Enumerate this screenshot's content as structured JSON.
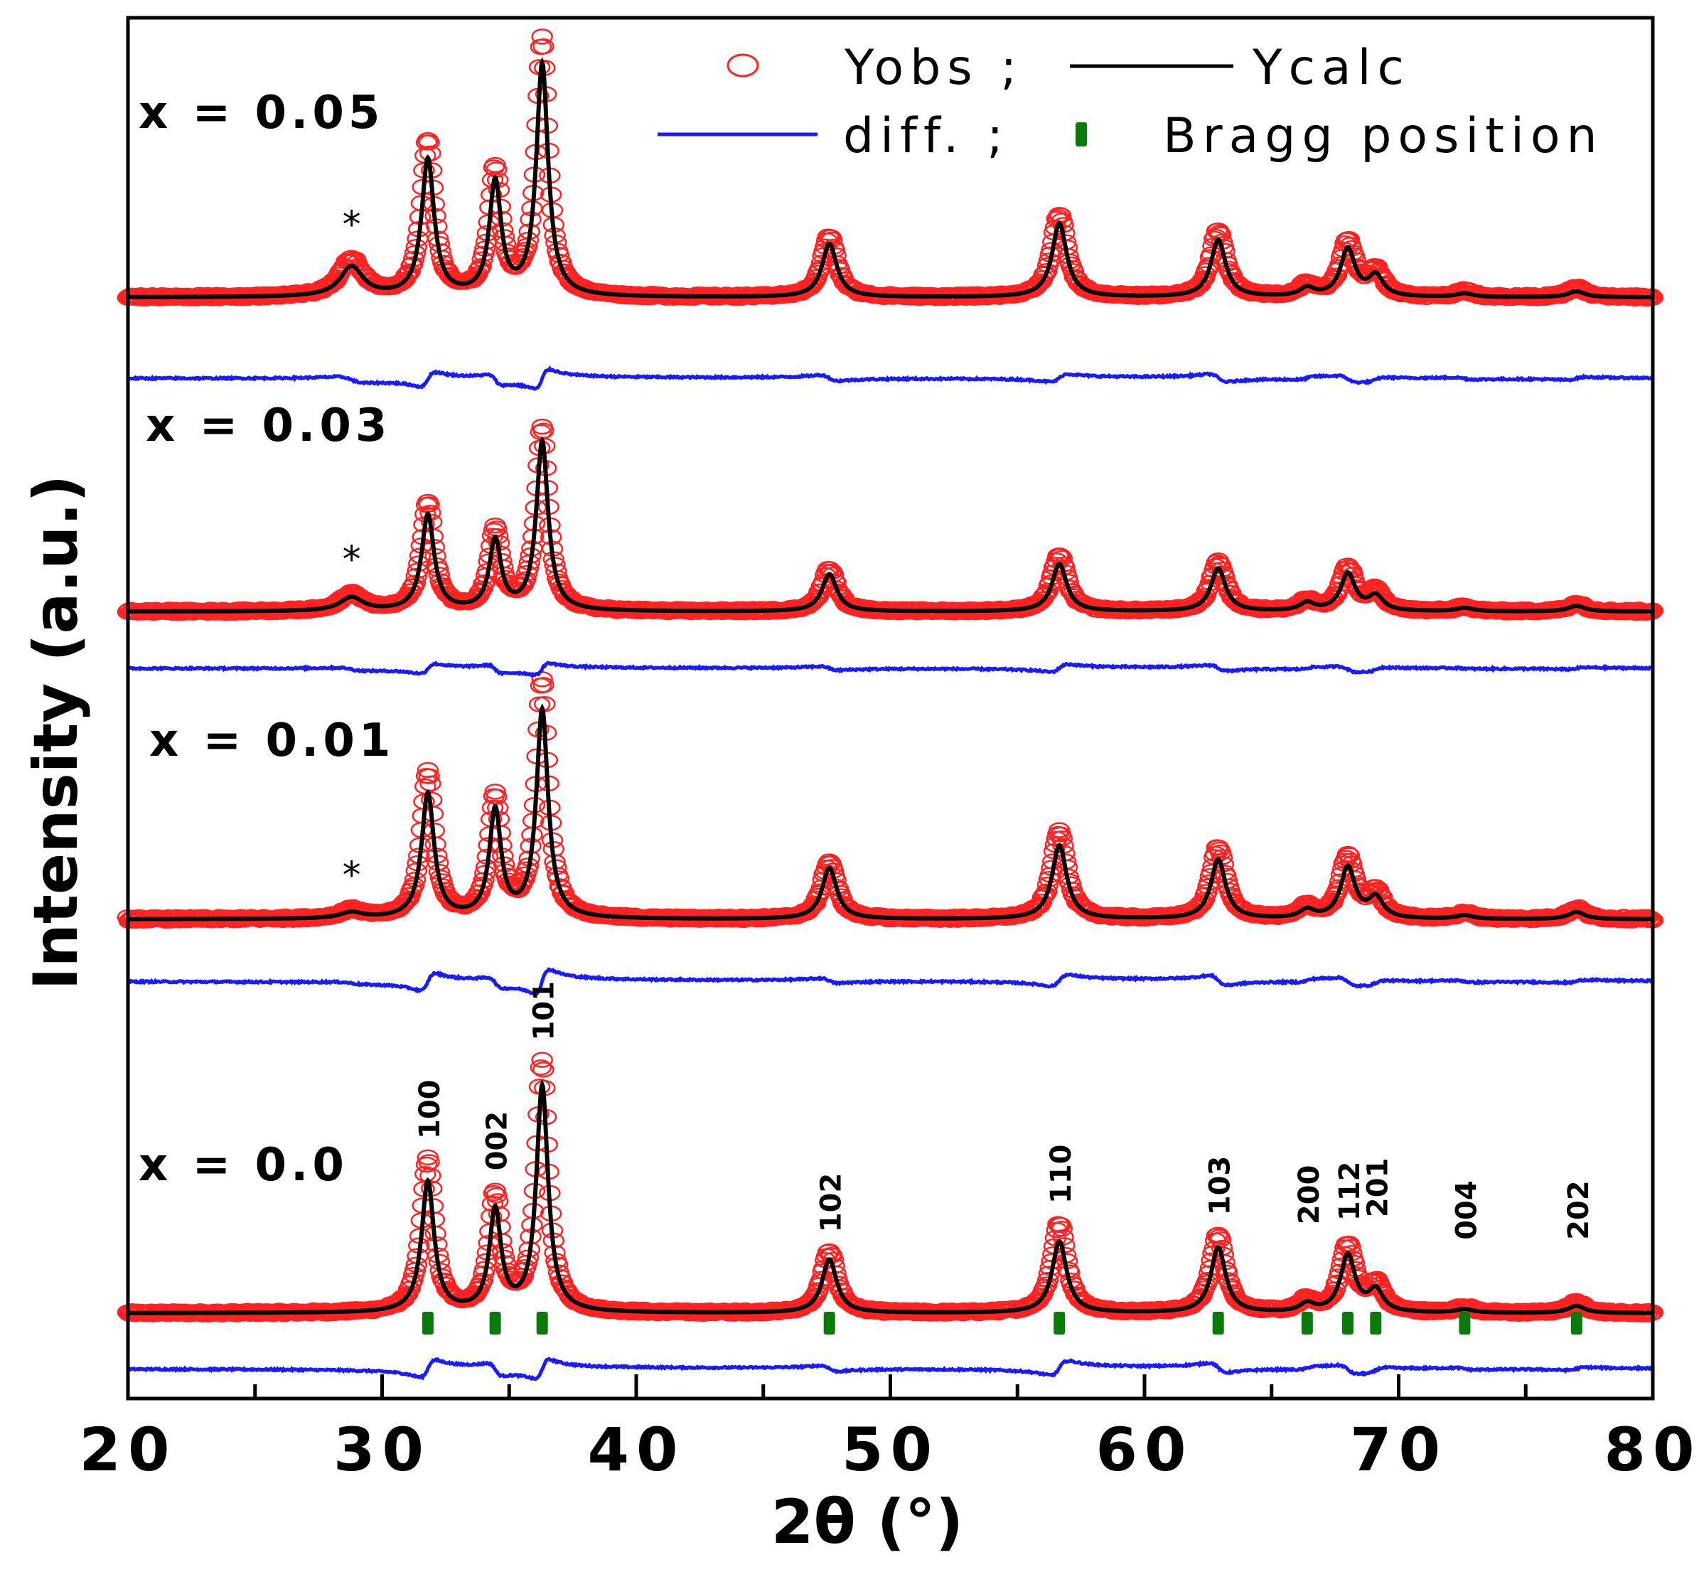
{
  "chart_data": {
    "type": "line",
    "title": "",
    "xlabel": "2θ (°)",
    "ylabel": "Intensity (a.u.)",
    "xlim": [
      20,
      80
    ],
    "xticks": [
      20,
      30,
      40,
      50,
      60,
      70,
      80
    ],
    "xtick_labels": [
      "20",
      "30",
      "40",
      "50",
      "60",
      "70",
      "80"
    ],
    "yticks_shown": false,
    "legend": {
      "placement": "top-right",
      "entries": [
        {
          "name": "Yobs",
          "label": "Yobs ;",
          "style": "open-circle",
          "color": "#ff2222"
        },
        {
          "name": "Ycalc",
          "label": "Ycalc",
          "style": "line",
          "color": "#000000"
        },
        {
          "name": "diff",
          "label": "diff. ;",
          "style": "line",
          "color": "#1a1aff"
        },
        {
          "name": "bragg",
          "label": "Bragg position",
          "style": "bar-marker",
          "color": "#0a7a0a"
        }
      ]
    },
    "colors": {
      "obs": "#ff2222",
      "calc": "#000000",
      "diff": "#1a1aff",
      "bragg": "#0a7a0a"
    },
    "peaks": [
      {
        "pos": 28.8,
        "width": 0.55
      },
      {
        "pos": 31.8,
        "width": 0.3
      },
      {
        "pos": 34.45,
        "width": 0.28
      },
      {
        "pos": 36.3,
        "width": 0.28
      },
      {
        "pos": 47.6,
        "width": 0.35
      },
      {
        "pos": 56.65,
        "width": 0.35
      },
      {
        "pos": 62.9,
        "width": 0.35
      },
      {
        "pos": 66.4,
        "width": 0.35
      },
      {
        "pos": 68.0,
        "width": 0.35
      },
      {
        "pos": 69.1,
        "width": 0.35
      },
      {
        "pos": 72.6,
        "width": 0.4
      },
      {
        "pos": 77.0,
        "width": 0.4
      }
    ],
    "series": [
      {
        "label": "x = 0.0",
        "impurity_star": false,
        "baseline": 0,
        "calc_intensities": [
          0,
          110,
          85,
          190,
          45,
          60,
          55,
          7,
          48,
          18,
          3,
          6
        ],
        "obs_offsets": [
          0,
          18,
          12,
          20,
          6,
          15,
          10,
          3,
          8,
          5,
          2,
          3
        ]
      },
      {
        "label": "x = 0.01",
        "impurity_star": true,
        "baseline": 0,
        "calc_intensities": [
          5,
          105,
          90,
          175,
          43,
          62,
          50,
          7,
          43,
          17,
          3,
          6
        ],
        "obs_offsets": [
          2,
          18,
          10,
          25,
          5,
          12,
          10,
          3,
          8,
          4,
          2,
          3
        ]
      },
      {
        "label": "x = 0.03",
        "impurity_star": true,
        "baseline": 3,
        "calc_intensities": [
          12,
          85,
          62,
          150,
          33,
          42,
          38,
          7,
          33,
          13,
          3,
          5
        ],
        "obs_offsets": [
          3,
          10,
          8,
          12,
          4,
          8,
          6,
          2,
          5,
          4,
          1,
          2
        ]
      },
      {
        "label": "x = 0.05",
        "impurity_star": true,
        "baseline": 4,
        "calc_intensities": [
          25,
          115,
          95,
          195,
          45,
          62,
          48,
          7,
          40,
          17,
          3,
          5
        ],
        "obs_offsets": [
          6,
          15,
          10,
          20,
          6,
          8,
          8,
          3,
          6,
          4,
          2,
          3
        ]
      }
    ],
    "bragg_positions": [
      31.8,
      34.45,
      36.3,
      47.6,
      56.65,
      62.9,
      66.4,
      68.0,
      69.1,
      72.6,
      77.0
    ],
    "hkl_labels": [
      "100",
      "002",
      "101",
      "102",
      "110",
      "103",
      "200",
      "112",
      "201",
      "004",
      "202"
    ],
    "impurity_marker": "*"
  }
}
